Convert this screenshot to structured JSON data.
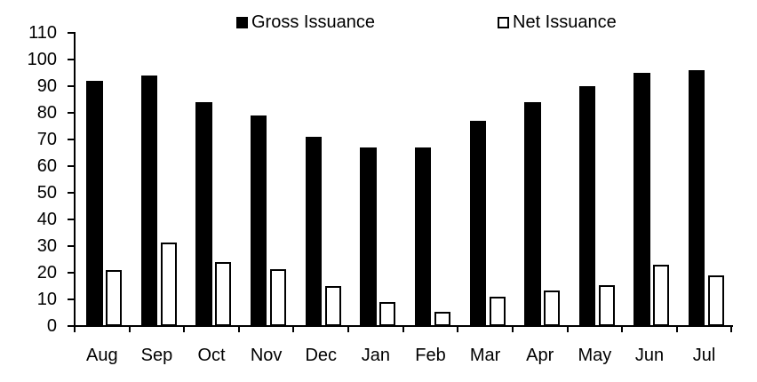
{
  "chart_data": {
    "type": "bar",
    "title": "",
    "xlabel": "",
    "ylabel": "",
    "categories": [
      "Aug",
      "Sep",
      "Oct",
      "Nov",
      "Dec",
      "Jan",
      "Feb",
      "Mar",
      "Apr",
      "May",
      "Jun",
      "Jul"
    ],
    "series": [
      {
        "name": "Gross Issuance",
        "style": "filled",
        "fill_color": "#000000",
        "values": [
          92,
          94,
          84,
          79,
          71,
          67,
          67,
          77,
          84,
          90,
          95,
          96
        ]
      },
      {
        "name": "Net Issuance",
        "style": "outlined",
        "fill_color": "#ffffff",
        "border_color": "#000000",
        "values": [
          21,
          31.5,
          24,
          21.5,
          15,
          9,
          5.5,
          11,
          13.5,
          15.5,
          23,
          19
        ]
      }
    ],
    "ylim": [
      0,
      110
    ],
    "yticks": [
      0,
      10,
      20,
      30,
      40,
      50,
      60,
      70,
      80,
      90,
      100,
      110
    ],
    "grid": false,
    "legend_position": "top",
    "axis_color": "#000000",
    "background_color": "#ffffff"
  }
}
